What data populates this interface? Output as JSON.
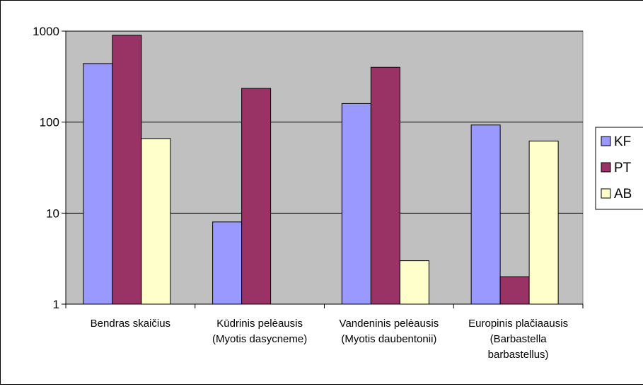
{
  "chart_data": {
    "type": "bar",
    "yscale": "log",
    "ylim": [
      1,
      1000
    ],
    "y_ticks": [
      1,
      10,
      100,
      1000
    ],
    "y_tick_labels": [
      "1",
      "10",
      "100",
      "1000"
    ],
    "categories": [
      [
        "Bendras skaičius"
      ],
      [
        "Kūdrinis pelėausis",
        "(Myotis dasycneme)"
      ],
      [
        "Vandeninis pelėausis",
        "(Myotis daubentonii)"
      ],
      [
        "Europinis plačiaausis",
        "(Barbastella",
        "barbastellus)"
      ]
    ],
    "series": [
      {
        "name": "KF",
        "color": "#9999FF",
        "values": [
          440,
          8,
          160,
          93
        ]
      },
      {
        "name": "PT",
        "color": "#993366",
        "values": [
          900,
          235,
          400,
          2
        ]
      },
      {
        "name": "AB",
        "color": "#FFFFCC",
        "values": [
          66,
          null,
          3,
          62
        ]
      }
    ],
    "plot_background": "#C0C0C0",
    "legend_position": "right",
    "grid": "horizontal major lines"
  }
}
